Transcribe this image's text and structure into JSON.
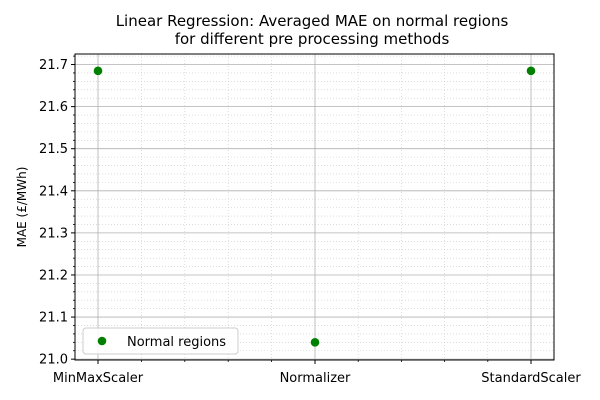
{
  "chart_data": {
    "type": "scatter",
    "title_lines": [
      "Linear Regression: Averaged MAE on normal regions",
      "for different pre processing methods"
    ],
    "xlabel": "",
    "ylabel": "MAE (£/MWh)",
    "categories": [
      "MinMaxScaler",
      "Normalizer",
      "StandardScaler"
    ],
    "series": [
      {
        "name": "Normal regions",
        "color": "#008000",
        "values": [
          21.685,
          21.04,
          21.685
        ]
      }
    ],
    "ylim": [
      20.998,
      21.725
    ],
    "yticks": [
      21.0,
      21.1,
      21.2,
      21.3,
      21.4,
      21.5,
      21.6,
      21.7
    ],
    "yticklabels": [
      "21.0",
      "21.1",
      "21.2",
      "21.3",
      "21.4",
      "21.5",
      "21.6",
      "21.7"
    ],
    "grid": true,
    "minor_grid": true,
    "legend_position": "lower-left"
  }
}
